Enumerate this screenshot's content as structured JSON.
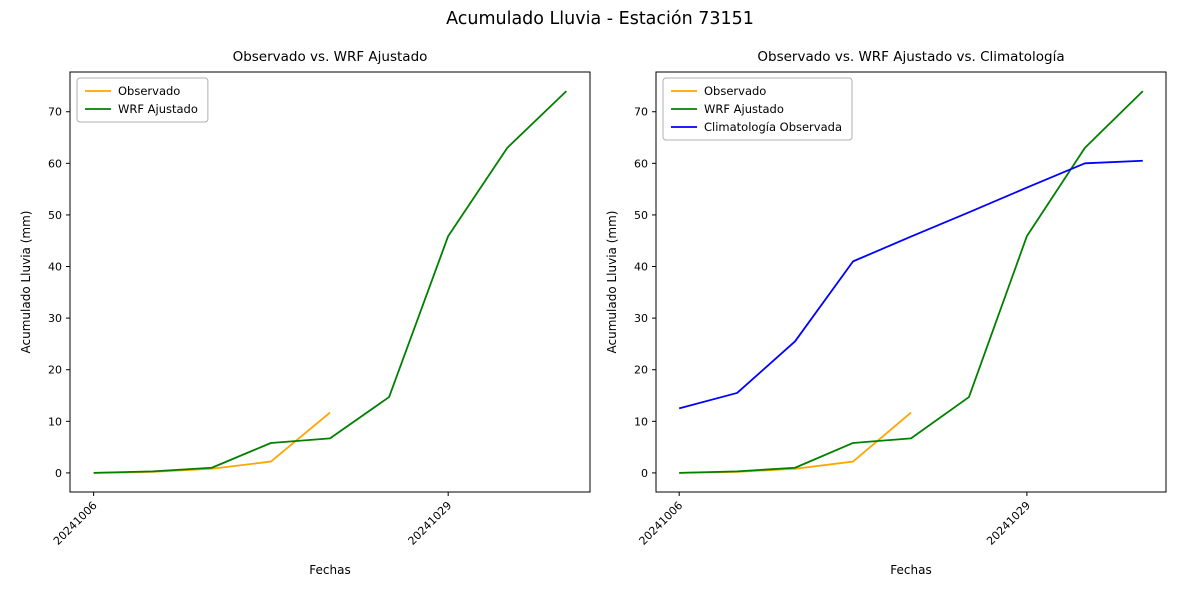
{
  "figure": {
    "suptitle": "Acumulado Lluvia - Estación 73151"
  },
  "chart_data": [
    {
      "type": "line",
      "title": "Observado vs. WRF Ajustado",
      "xlabel": "Fechas",
      "ylabel": "Acumulado Lluvia (mm)",
      "xlim": [
        -0.4,
        8.4
      ],
      "ylim": [
        -3.7,
        77.7
      ],
      "y_ticks": [
        0,
        10,
        20,
        30,
        40,
        50,
        60,
        70
      ],
      "x_ticks": [
        {
          "label": "20241006",
          "position": 0
        },
        {
          "label": "20241029",
          "position": 6
        }
      ],
      "legend_position": "upper left",
      "grid": false,
      "series": [
        {
          "name": "Observado",
          "color": "#ffa500",
          "x": [
            0,
            1,
            2,
            3,
            4
          ],
          "values": [
            0.0,
            0.2,
            0.8,
            2.2,
            11.7
          ]
        },
        {
          "name": "WRF Ajustado",
          "color": "#008000",
          "x": [
            0,
            1,
            2,
            3,
            4,
            5,
            6,
            7,
            8
          ],
          "values": [
            0.0,
            0.3,
            1.0,
            5.8,
            6.7,
            14.7,
            45.9,
            63.0,
            74.0
          ]
        }
      ]
    },
    {
      "type": "line",
      "title": "Observado vs. WRF Ajustado vs. Climatología",
      "xlabel": "Fechas",
      "ylabel": "Acumulado Lluvia (mm)",
      "xlim": [
        -0.4,
        8.4
      ],
      "ylim": [
        -3.7,
        77.7
      ],
      "y_ticks": [
        0,
        10,
        20,
        30,
        40,
        50,
        60,
        70
      ],
      "x_ticks": [
        {
          "label": "20241006",
          "position": 0
        },
        {
          "label": "20241029",
          "position": 6
        }
      ],
      "legend_position": "upper left",
      "grid": false,
      "series": [
        {
          "name": "Observado",
          "color": "#ffa500",
          "x": [
            0,
            1,
            2,
            3,
            4
          ],
          "values": [
            0.0,
            0.2,
            0.8,
            2.2,
            11.7
          ]
        },
        {
          "name": "WRF Ajustado",
          "color": "#008000",
          "x": [
            0,
            1,
            2,
            3,
            4,
            5,
            6,
            7,
            8
          ],
          "values": [
            0.0,
            0.3,
            1.0,
            5.8,
            6.7,
            14.7,
            45.9,
            63.0,
            74.0
          ]
        },
        {
          "name": "Climatología Observada",
          "color": "#0000ff",
          "x": [
            0,
            1,
            2,
            3,
            4,
            5,
            6,
            7,
            8
          ],
          "values": [
            12.5,
            15.5,
            25.5,
            41.0,
            45.8,
            50.5,
            55.3,
            60.0,
            60.5
          ]
        }
      ]
    }
  ]
}
